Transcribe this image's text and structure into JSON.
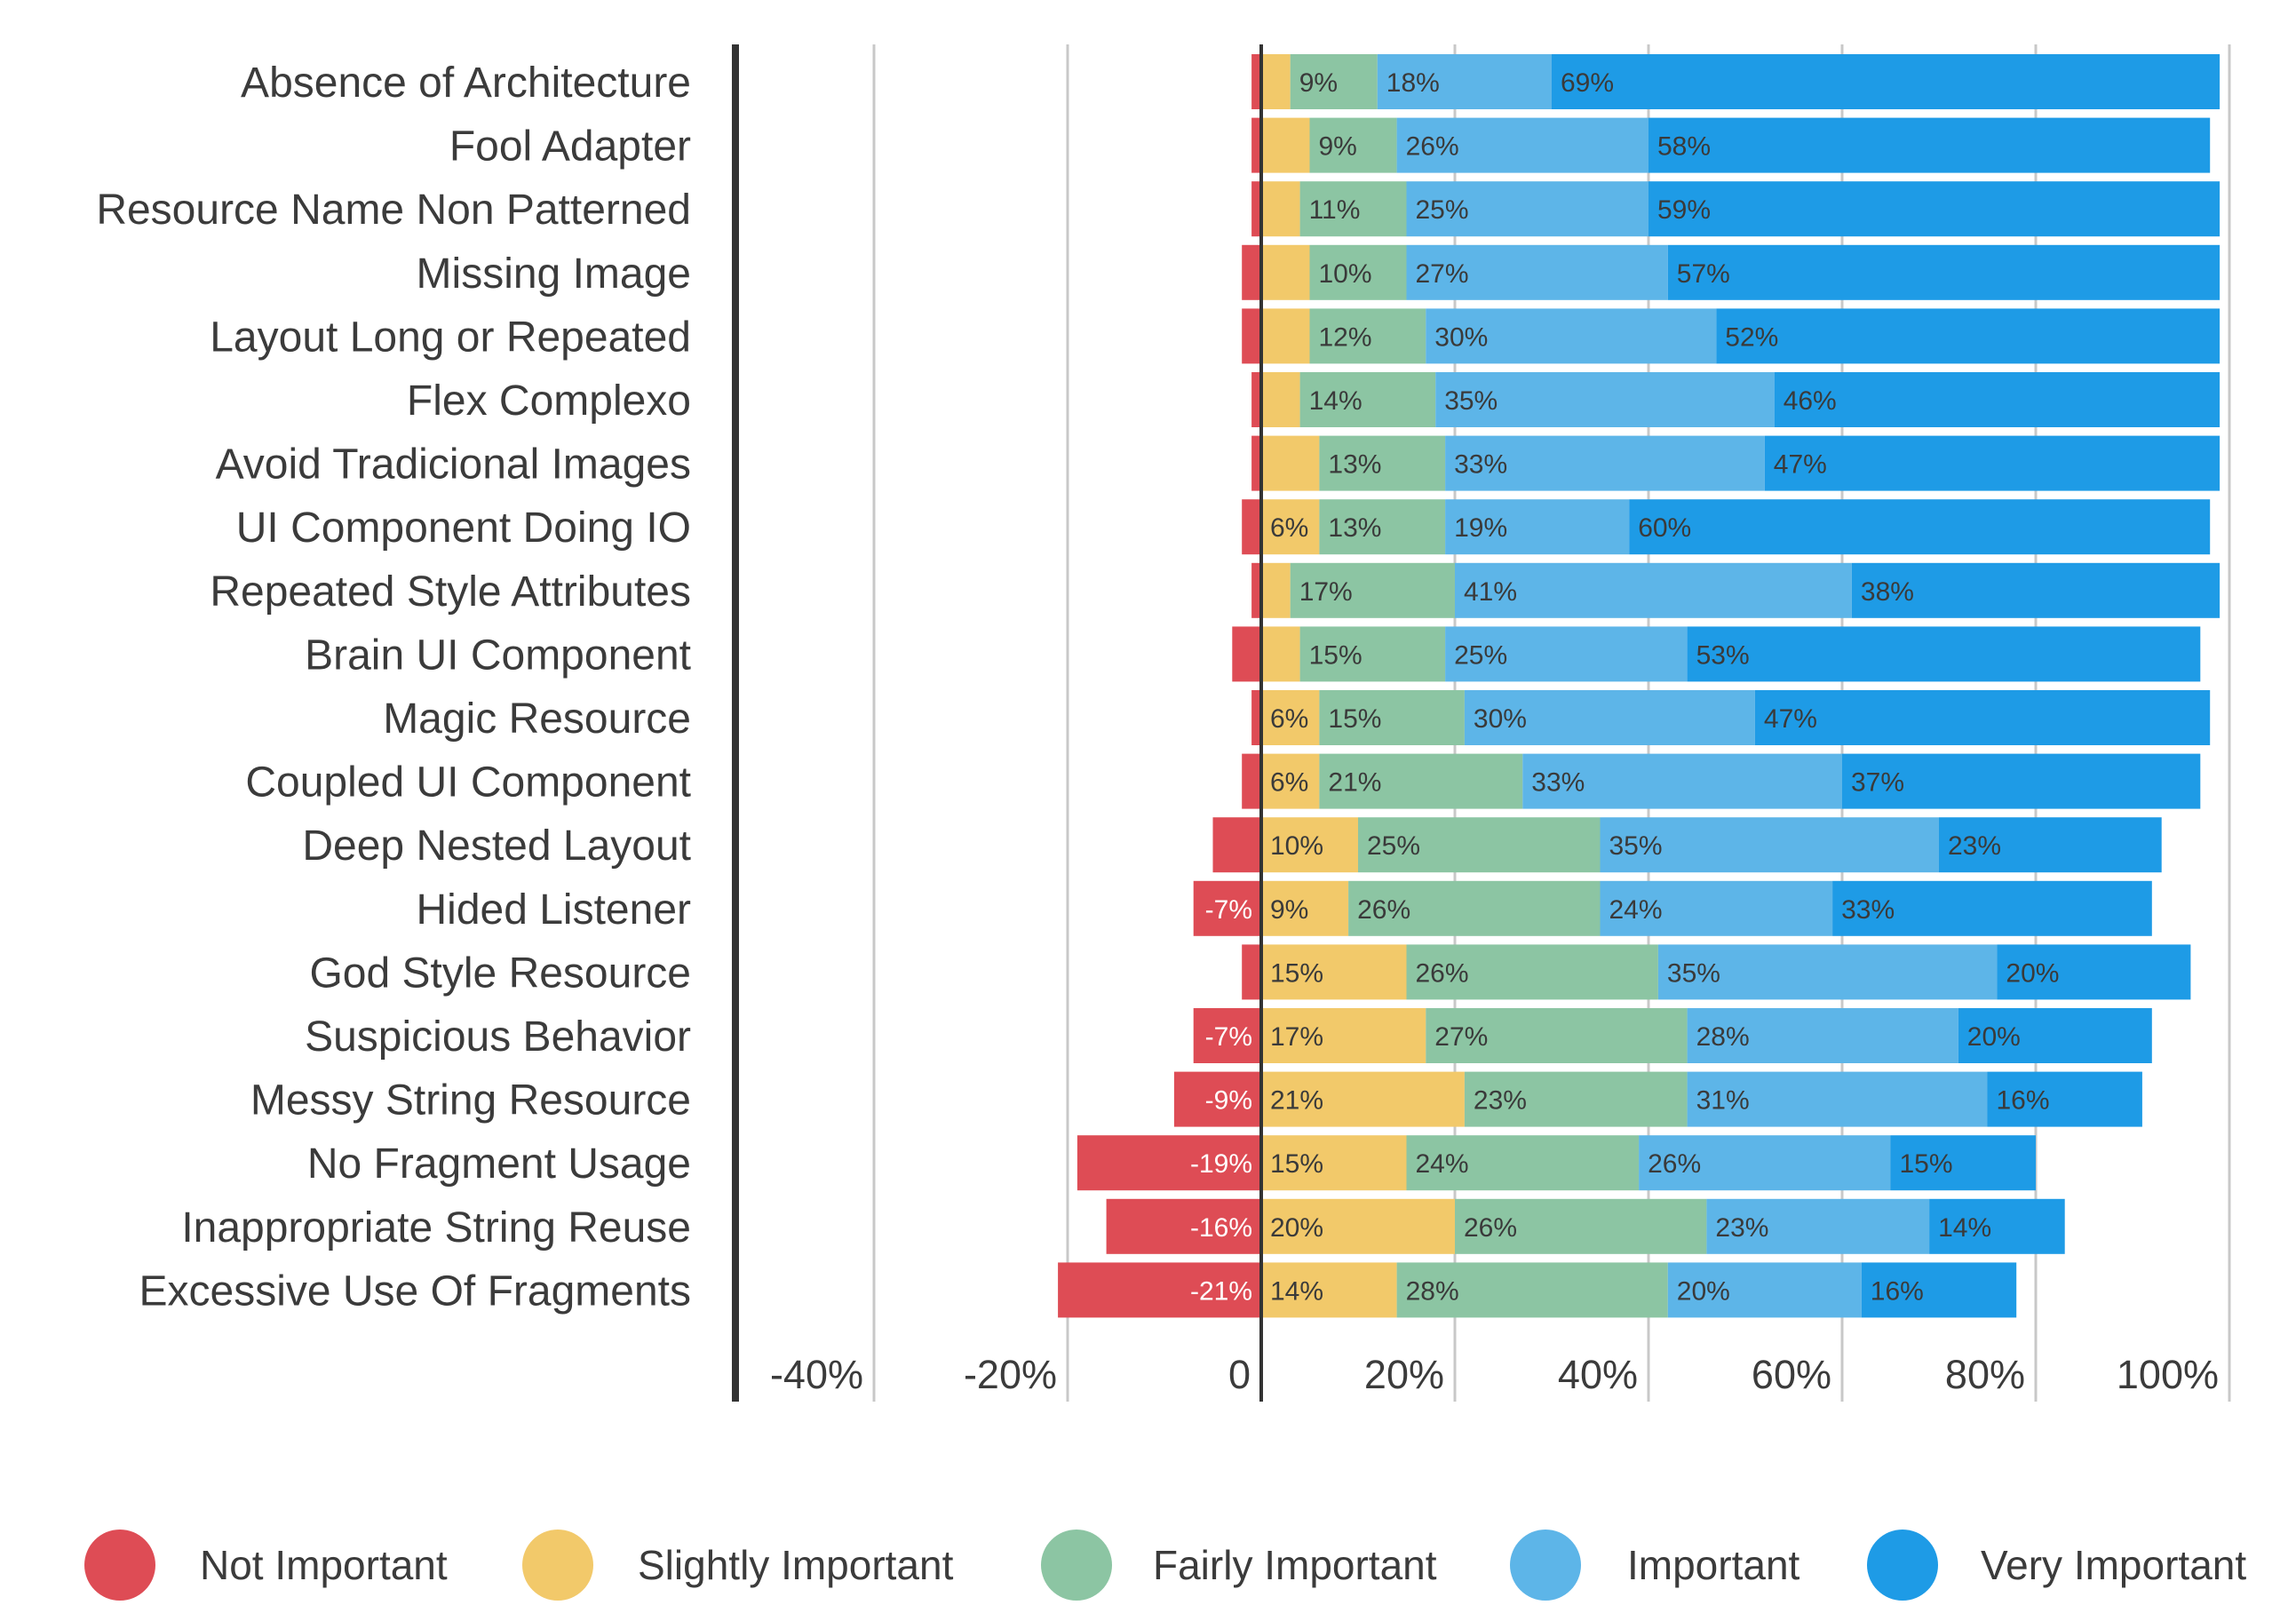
{
  "chart_data": {
    "type": "bar",
    "orientation": "horizontal",
    "stacked": true,
    "diverging": true,
    "categories": [
      "Absence of Architecture",
      "Fool Adapter",
      "Resource Name Non Patterned",
      "Missing Image",
      "Layout Long or Repeated",
      "Flex Complexo",
      "Avoid Tradicional Images",
      "UI Component Doing IO",
      "Repeated Style Attributes",
      "Brain UI Component",
      "Magic Resource",
      "Coupled UI Component",
      "Deep Nested Layout",
      "Hided Listener",
      "God Style Resource",
      "Suspicious Behavior",
      "Messy String Resource",
      "No Fragment Usage",
      "Inappropriate String Reuse",
      "Excessive Use Of Fragments"
    ],
    "series": [
      {
        "name": "Not Important",
        "color": "#de4c55",
        "values": [
          -1,
          -1,
          -1,
          -2,
          -2,
          -1,
          -1,
          -2,
          -1,
          -3,
          -1,
          -2,
          -5,
          -7,
          -2,
          -7,
          -9,
          -19,
          -16,
          -21
        ],
        "labels": [
          "",
          "",
          "",
          "",
          "",
          "",
          "",
          "",
          "",
          "",
          "",
          "",
          "",
          "-7%",
          "",
          "-7%",
          "-9%",
          "-19%",
          "-16%",
          "-21%"
        ]
      },
      {
        "name": "Slightly Important",
        "color": "#f2c96a",
        "values": [
          3,
          5,
          4,
          5,
          5,
          4,
          6,
          6,
          3,
          4,
          6,
          6,
          10,
          9,
          15,
          17,
          21,
          15,
          20,
          14
        ],
        "labels": [
          "",
          "",
          "",
          "",
          "",
          "",
          "",
          "6%",
          "",
          "",
          "6%",
          "6%",
          "10%",
          "9%",
          "15%",
          "17%",
          "21%",
          "15%",
          "20%",
          "14%"
        ]
      },
      {
        "name": "Fairly Important",
        "color": "#8cc5a3",
        "values": [
          9,
          9,
          11,
          10,
          12,
          14,
          13,
          13,
          17,
          15,
          15,
          21,
          25,
          26,
          26,
          27,
          23,
          24,
          26,
          28
        ],
        "labels": [
          "9%",
          "9%",
          "11%",
          "10%",
          "12%",
          "14%",
          "13%",
          "13%",
          "17%",
          "15%",
          "15%",
          "21%",
          "25%",
          "26%",
          "26%",
          "27%",
          "23%",
          "24%",
          "26%",
          "28%"
        ]
      },
      {
        "name": "Important",
        "color": "#5db5e8",
        "values": [
          18,
          26,
          25,
          27,
          30,
          35,
          33,
          19,
          41,
          25,
          30,
          33,
          35,
          24,
          35,
          28,
          31,
          26,
          23,
          20
        ],
        "labels": [
          "18%",
          "26%",
          "25%",
          "27%",
          "30%",
          "35%",
          "33%",
          "19%",
          "41%",
          "25%",
          "30%",
          "33%",
          "35%",
          "24%",
          "35%",
          "28%",
          "31%",
          "26%",
          "23%",
          "20%"
        ]
      },
      {
        "name": "Very Important",
        "color": "#1e9be6",
        "values": [
          69,
          58,
          59,
          57,
          52,
          46,
          47,
          60,
          38,
          53,
          47,
          37,
          23,
          33,
          20,
          20,
          16,
          15,
          14,
          16
        ],
        "labels": [
          "69%",
          "58%",
          "59%",
          "57%",
          "52%",
          "46%",
          "47%",
          "60%",
          "38%",
          "53%",
          "47%",
          "37%",
          "23%",
          "33%",
          "20%",
          "20%",
          "16%",
          "15%",
          "14%",
          "16%"
        ]
      }
    ],
    "x_ticks": [
      "-40%",
      "-20%",
      "0",
      "20%",
      "40%",
      "60%",
      "80%",
      "100%"
    ],
    "x_tick_values": [
      -40,
      -20,
      0,
      20,
      40,
      60,
      80,
      100
    ],
    "xlim": [
      -55,
      100
    ],
    "grid": true,
    "legend_position": "bottom"
  }
}
